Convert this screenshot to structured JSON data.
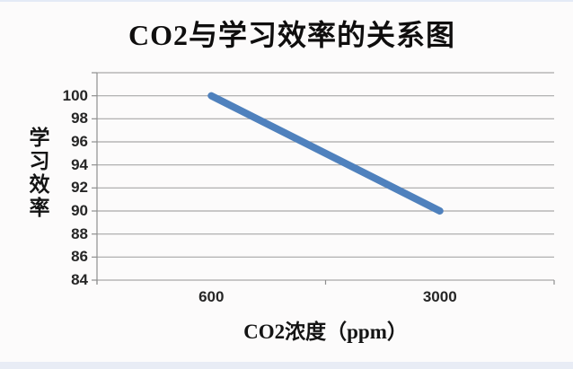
{
  "chart_data": {
    "type": "line",
    "title": "CO2与学习效率的关系图",
    "xlabel": "CO2浓度（ppm）",
    "ylabel": "学习效率",
    "categories": [
      "600",
      "3000"
    ],
    "series": [
      {
        "values": [
          100,
          90
        ]
      }
    ],
    "ylim": [
      84,
      102
    ],
    "ytick_step": 2,
    "ytick_labels": [
      "100",
      "98",
      "96",
      "94",
      "92",
      "90",
      "88",
      "86",
      "84"
    ],
    "grid": "horizontal-only",
    "legend": "none",
    "colors": {
      "line": "#4F81BD",
      "gridline": "#a8a8a8",
      "axis": "#8f8f8f",
      "tick_text": "#262626",
      "title_text": "#0f0e0e",
      "background": "#fcfbfb",
      "bottom_strip": "#e8ecf5",
      "top_strip": "#e4eaf6"
    }
  }
}
